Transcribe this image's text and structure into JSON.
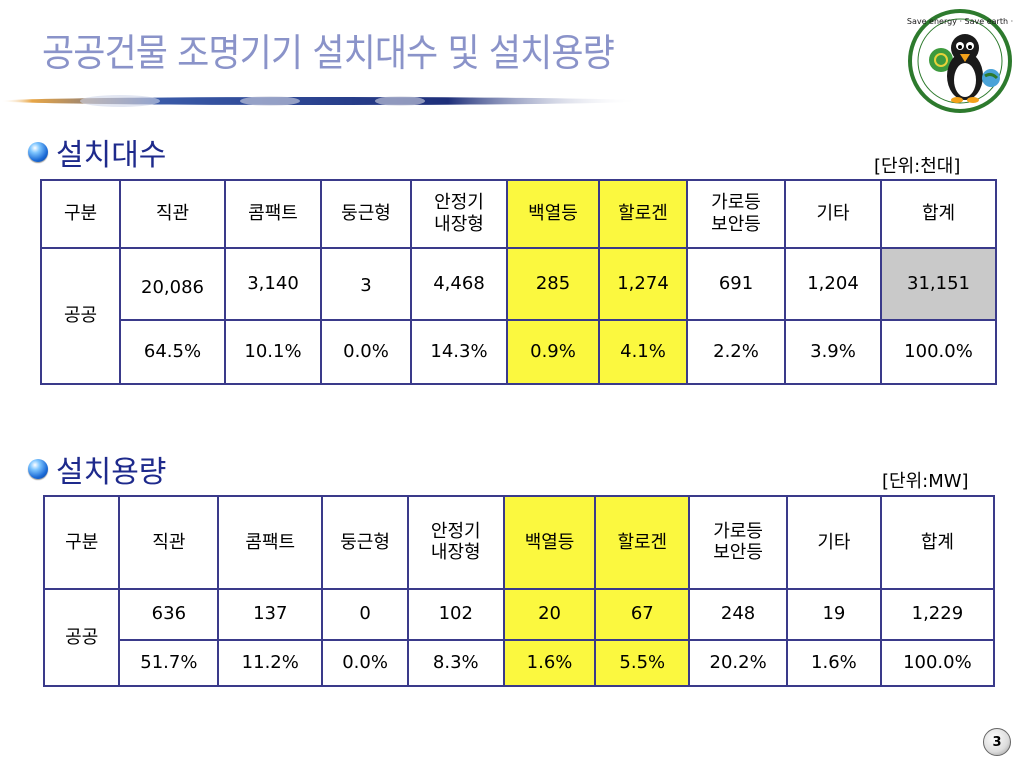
{
  "title": "공공건물 조명기기 설치대수 및 설치용량",
  "mascot": {
    "badge_text": "Save energy · Save earth ·"
  },
  "section1": {
    "heading": "설치대수",
    "unit": "[단위:천대]",
    "headers": [
      "구분",
      "직관",
      "콤팩트",
      "둥근형",
      "안정기\n내장형",
      "백열등",
      "할로겐",
      "가로등\n보안등",
      "기타",
      "합계"
    ],
    "row_label": "공공",
    "counts": [
      "20,086",
      "3,140",
      "3",
      "4,468",
      "285",
      "1,274",
      "691",
      "1,204",
      "31,151"
    ],
    "percents": [
      "64.5%",
      "10.1%",
      "0.0%",
      "14.3%",
      "0.9%",
      "4.1%",
      "2.2%",
      "3.9%",
      "100.0%"
    ]
  },
  "section2": {
    "heading": "설치용량",
    "unit": "[단위:MW]",
    "headers": [
      "구분",
      "직관",
      "콤팩트",
      "둥근형",
      "안정기\n내장형",
      "백열등",
      "할로겐",
      "가로등\n보안등",
      "기타",
      "합계"
    ],
    "row_label": "공공",
    "counts": [
      "636",
      "137",
      "0",
      "102",
      "20",
      "67",
      "248",
      "19",
      "1,229"
    ],
    "percents": [
      "51.7%",
      "11.2%",
      "0.0%",
      "8.3%",
      "1.6%",
      "5.5%",
      "20.2%",
      "1.6%",
      "100.0%"
    ]
  },
  "page_number": "3",
  "colors": {
    "title": "#8a93c9",
    "heading": "#1e2a8c",
    "highlight": "#fbf83f",
    "value_text": "#f39a1c",
    "total_bg": "#c9c9c9"
  }
}
